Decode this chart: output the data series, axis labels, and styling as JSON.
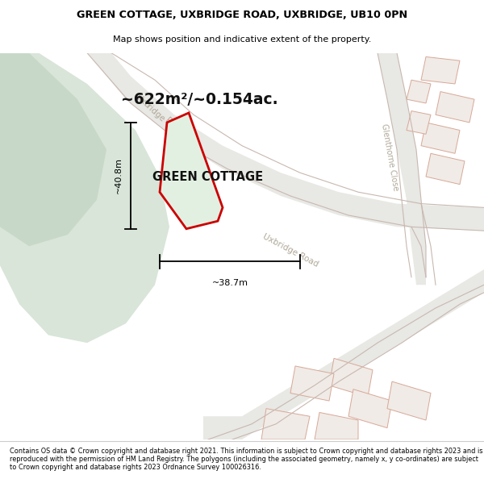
{
  "title_line1": "GREEN COTTAGE, UXBRIDGE ROAD, UXBRIDGE, UB10 0PN",
  "title_line2": "Map shows position and indicative extent of the property.",
  "area_text": "~622m²/~0.154ac.",
  "property_label": "GREEN COTTAGE",
  "dim_height": "~40.8m",
  "dim_width": "~38.7m",
  "footer_text": "Contains OS data © Crown copyright and database right 2021. This information is subject to Crown copyright and database rights 2023 and is reproduced with the permission of HM Land Registry. The polygons (including the associated geometry, namely x, y co-ordinates) are subject to Crown copyright and database rights 2023 Ordnance Survey 100026316.",
  "map_bg": "#f2f4f0",
  "green_light": "#d8e5d8",
  "green_dark": "#c8d8c8",
  "road_fill": "#e8e8e4",
  "property_fill": "#e2f0e2",
  "property_edge": "#cc0000",
  "building_fill": "#f0ebe6",
  "building_edge": "#d8a898",
  "road_edge": "#c8b8b0",
  "road_label_color": "#b0a898",
  "dim_color": "#000000",
  "title_color": "#000000",
  "footer_color": "#000000"
}
